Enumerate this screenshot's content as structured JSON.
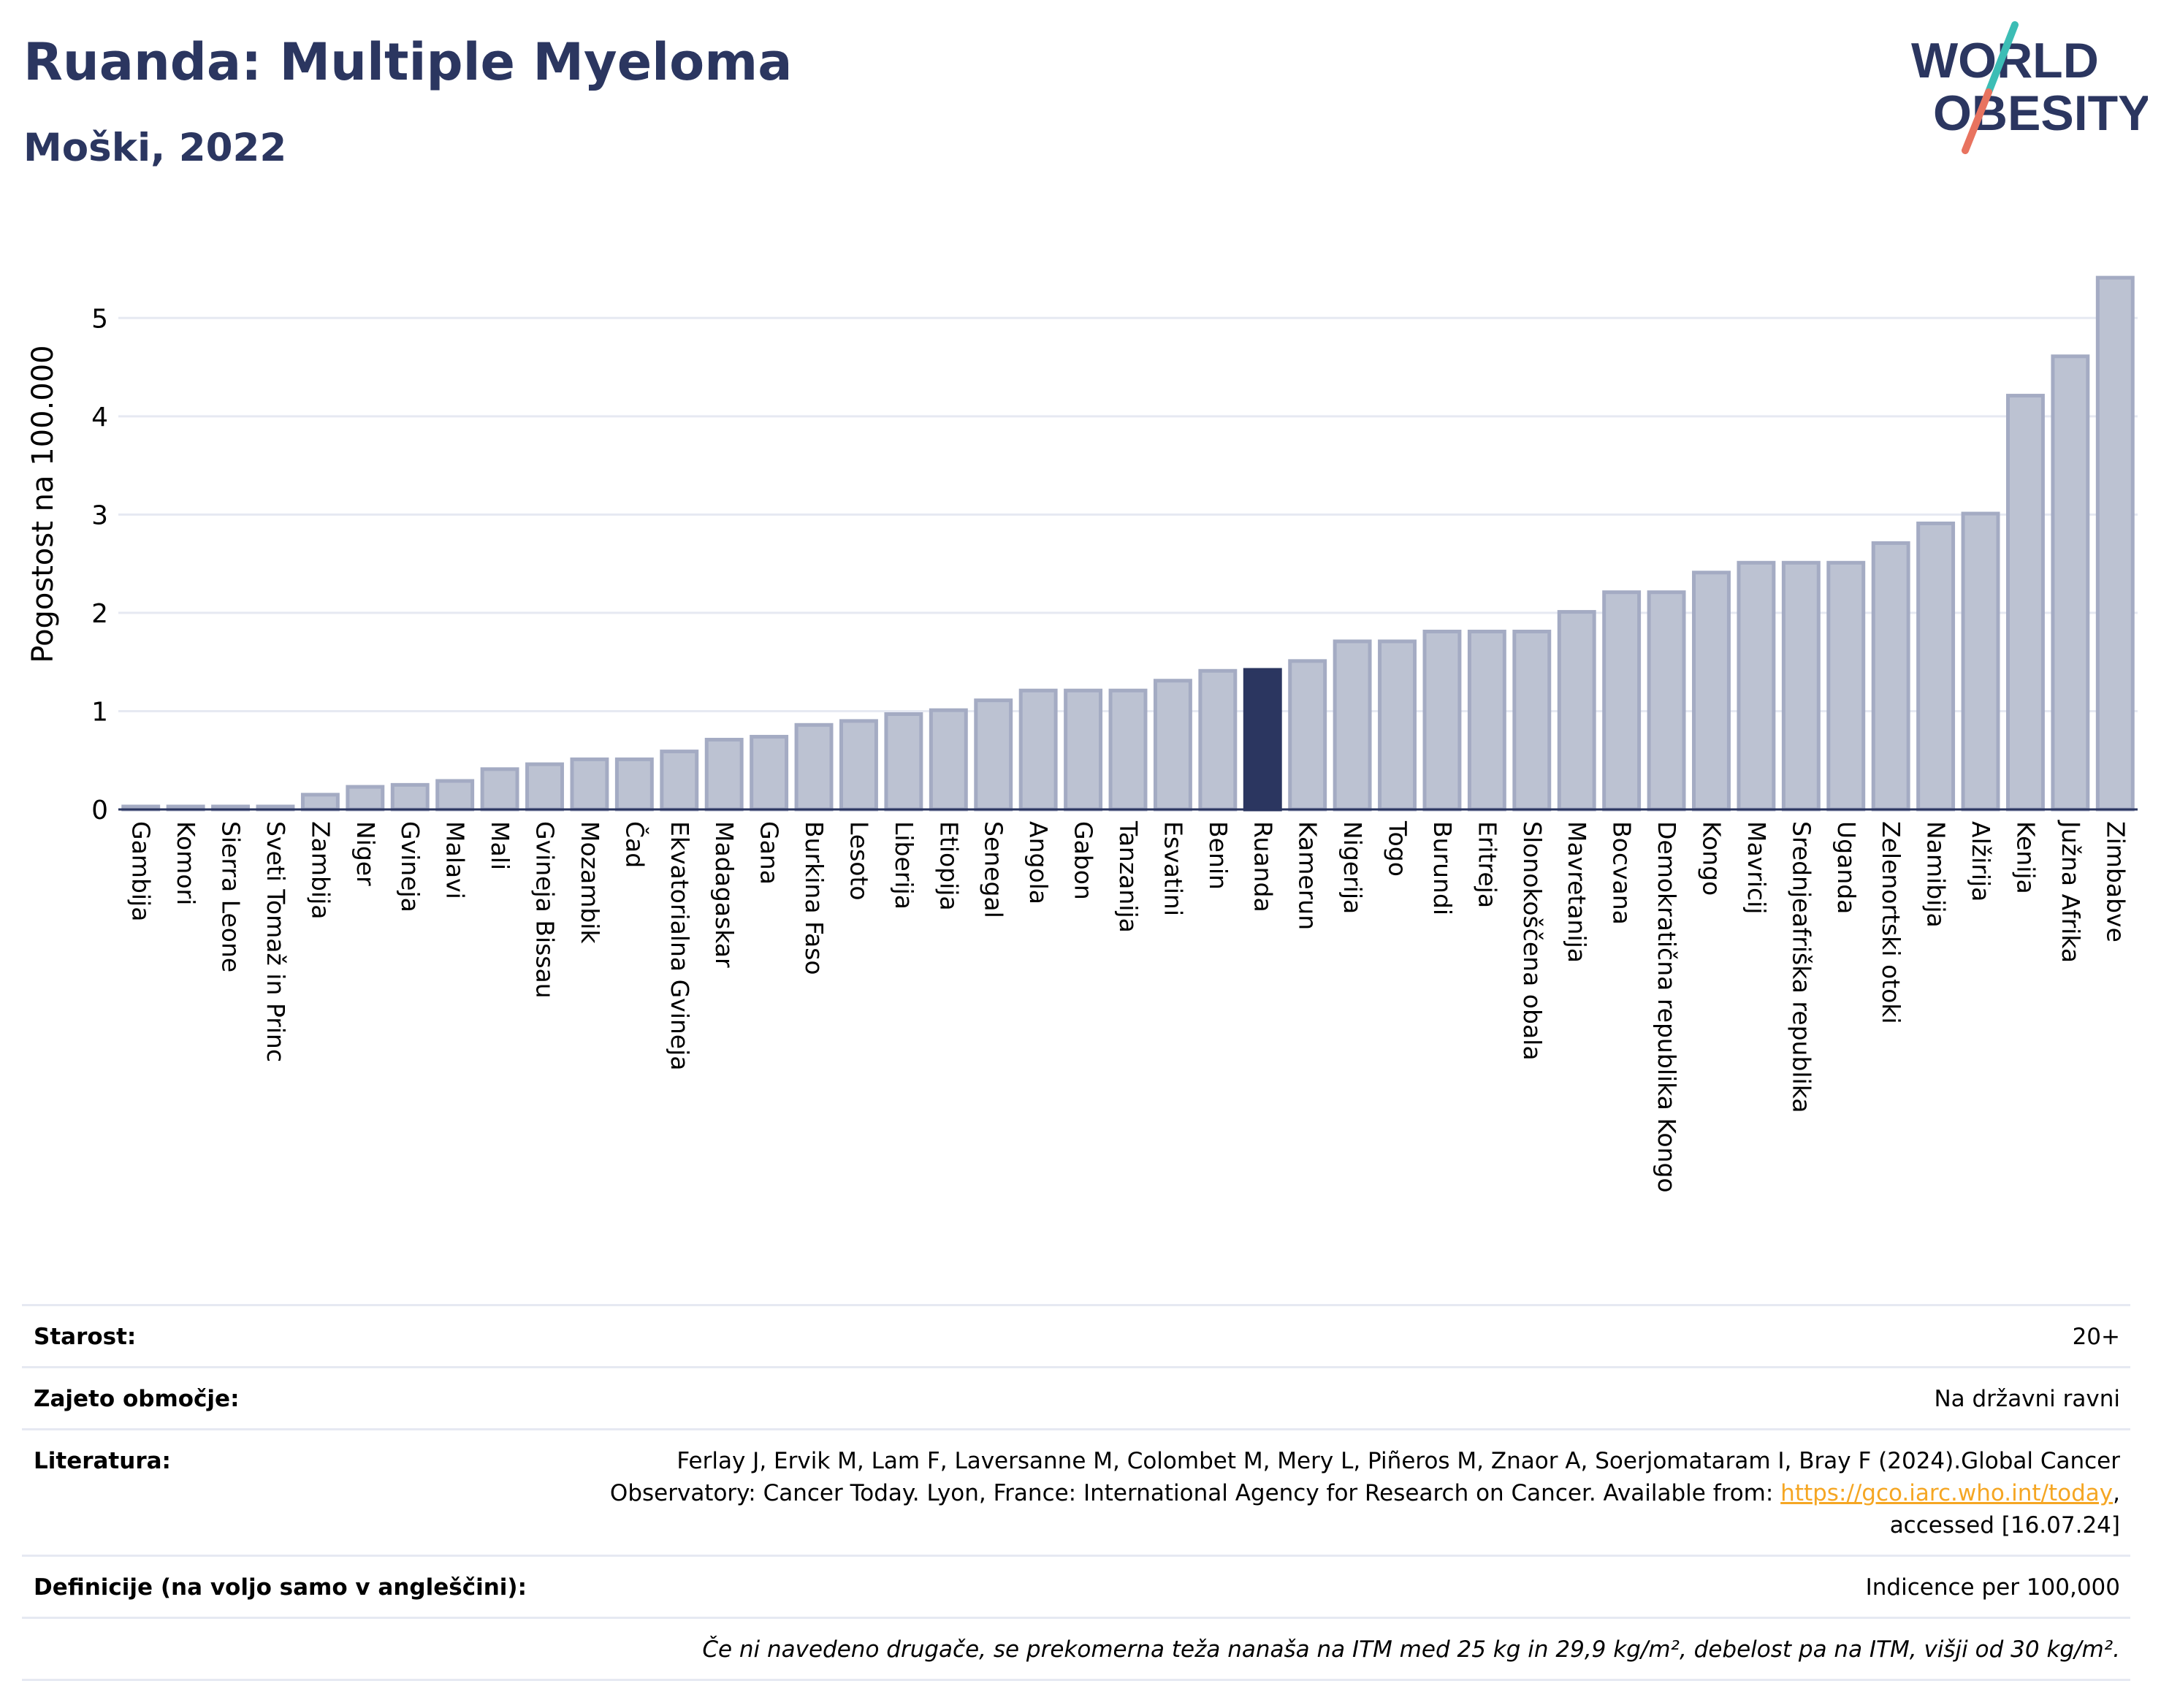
{
  "header": {
    "title": "Ruanda: Multiple Myeloma",
    "subtitle": "Moški, 2022"
  },
  "logo": {
    "line1": "WORLD",
    "line2": "OBESITY",
    "text_color": "#2b3660",
    "slash_teal": "#3cbdb5",
    "slash_coral": "#e8735f"
  },
  "chart_data": {
    "type": "bar",
    "ylabel": "Pogostost na 100.000",
    "xlabel": "",
    "ylim": [
      0,
      5.5
    ],
    "yticks": [
      0,
      1,
      2,
      3,
      4,
      5
    ],
    "grid": true,
    "highlight": "Ruanda",
    "colors": {
      "bar": "#bcc2d2",
      "bar_edge": "#a4abc3",
      "highlight": "#2b3660",
      "grid": "#e6e9f2"
    },
    "categories": [
      "Gambija",
      "Komori",
      "Sierra Leone",
      "Sveti Tomaž in Princ",
      "Zambija",
      "Niger",
      "Gvineja",
      "Malavi",
      "Mali",
      "Gvineja Bissau",
      "Mozambik",
      "Čad",
      "Ekvatorialna Gvineja",
      "Madagaskar",
      "Gana",
      "Burkina Faso",
      "Lesoto",
      "Liberija",
      "Etiopija",
      "Senegal",
      "Angola",
      "Gabon",
      "Tanzanija",
      "Esvatini",
      "Benin",
      "Ruanda",
      "Kamerun",
      "Nigerija",
      "Togo",
      "Burundi",
      "Eritreja",
      "Slonokoščena obala",
      "Mavretanija",
      "Bocvana",
      "Demokratična republika Kongo",
      "Kongo",
      "Mavricij",
      "Srednjeafriška republika",
      "Uganda",
      "Zelenortski otoki",
      "Namibija",
      "Alžirija",
      "Kenija",
      "Južna Afrika",
      "Zimbabve"
    ],
    "values": [
      0.03,
      0.03,
      0.03,
      0.03,
      0.15,
      0.23,
      0.25,
      0.29,
      0.41,
      0.46,
      0.51,
      0.51,
      0.59,
      0.71,
      0.74,
      0.86,
      0.9,
      0.97,
      1.01,
      1.11,
      1.21,
      1.21,
      1.21,
      1.31,
      1.41,
      1.42,
      1.51,
      1.71,
      1.71,
      1.81,
      1.81,
      1.81,
      2.01,
      2.21,
      2.21,
      2.41,
      2.51,
      2.51,
      2.51,
      2.71,
      2.91,
      3.01,
      4.21,
      4.61,
      5.41
    ]
  },
  "meta": {
    "age_label": "Starost:",
    "age_value": "20+",
    "coverage_label": "Zajeto območje:",
    "coverage_value": "Na državni ravni",
    "lit_label": "Literatura:",
    "lit_text": "Ferlay J, Ervik M, Lam F, Laversanne M, Colombet M, Mery L, Piñeros M, Znaor A, Soerjomataram I, Bray F (2024).Global Cancer Observatory: Cancer Today. Lyon, France: International Agency for Research on Cancer. Available from: ",
    "lit_link": "https://gco.iarc.who.int/today",
    "lit_tail": ", accessed [16.07.24]",
    "def_label": "Definicije (na voljo samo v angleščini):",
    "def_value": "Indicence per 100,000",
    "note": "Če ni navedeno drugače, se prekomerna teža nanaša na ITM med 25 kg in 29,9 kg/m², debelost pa na ITM, višji od 30 kg/m²."
  }
}
